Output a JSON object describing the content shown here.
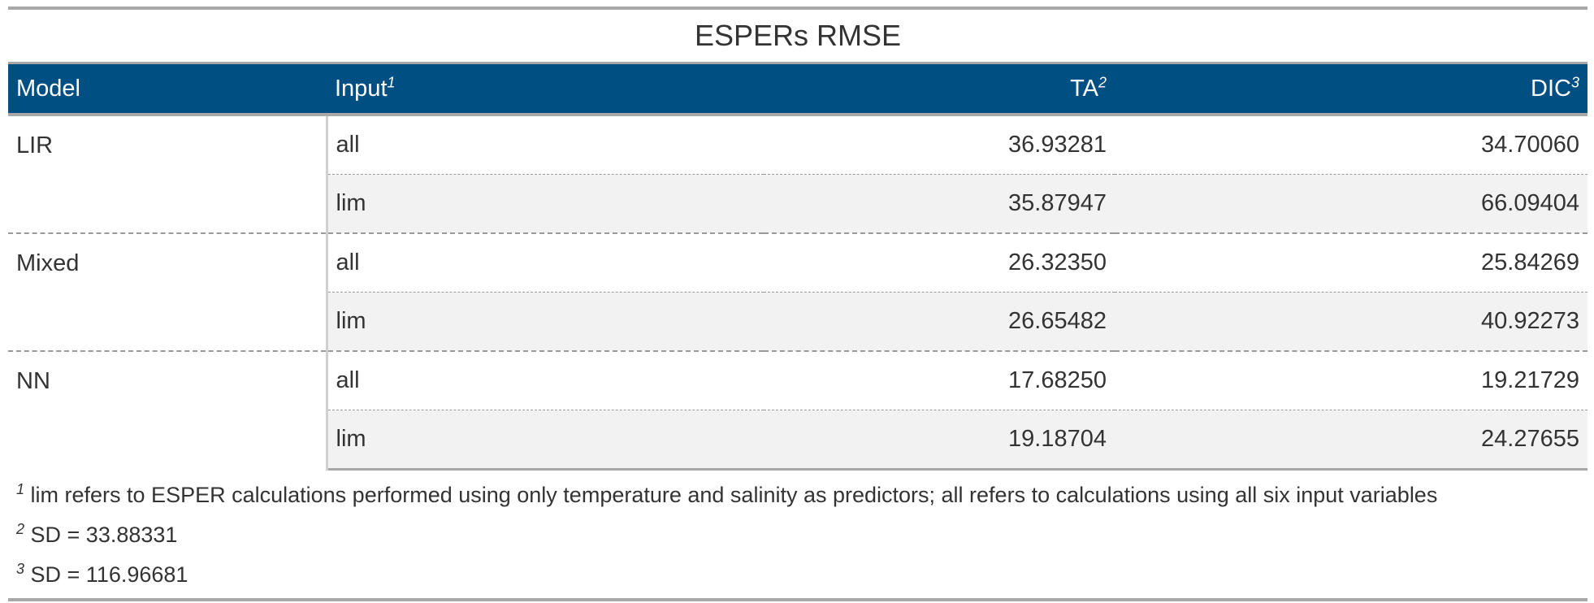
{
  "title": "ESPERs RMSE",
  "columns": [
    {
      "label": "Model",
      "note": ""
    },
    {
      "label": "Input",
      "note": "1"
    },
    {
      "label": "TA",
      "note": "2"
    },
    {
      "label": "DIC",
      "note": "3"
    }
  ],
  "groups": [
    {
      "model": "LIR",
      "rows": [
        {
          "input": "all",
          "ta": "36.93281",
          "dic": "34.70060"
        },
        {
          "input": "lim",
          "ta": "35.87947",
          "dic": "66.09404"
        }
      ]
    },
    {
      "model": "Mixed",
      "rows": [
        {
          "input": "all",
          "ta": "26.32350",
          "dic": "25.84269"
        },
        {
          "input": "lim",
          "ta": "26.65482",
          "dic": "40.92273"
        }
      ]
    },
    {
      "model": "NN",
      "rows": [
        {
          "input": "all",
          "ta": "17.68250",
          "dic": "19.21729"
        },
        {
          "input": "lim",
          "ta": "19.18704",
          "dic": "24.27655"
        }
      ]
    }
  ],
  "footnotes": [
    {
      "mark": "1",
      "text": "lim refers to ESPER calculations performed using only temperature and salinity as predictors; all refers to calculations using all six input variables"
    },
    {
      "mark": "2",
      "text": "SD = 33.88331"
    },
    {
      "mark": "3",
      "text": "SD = 116.96681"
    }
  ],
  "colors": {
    "header_bg": "#004f82",
    "header_text": "#ffffff",
    "stripe": "#f2f2f2",
    "rule": "#a8a8a8"
  }
}
